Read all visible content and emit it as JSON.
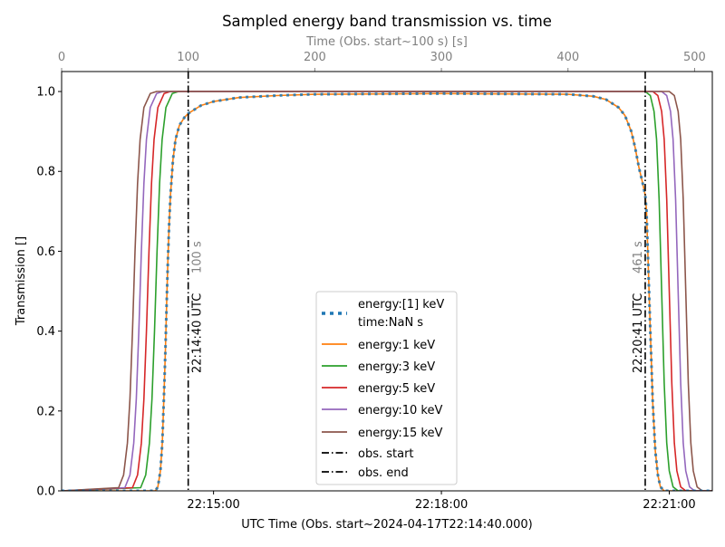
{
  "chart_data": {
    "type": "line",
    "title": "Sampled energy band transmission vs. time",
    "xlabel": "UTC Time (Obs. start~2024-04-17T22:14:40.000)",
    "ylabel": "Transmission []",
    "top_xlabel": "Time (Obs. start~100 s) [s]",
    "xlim": [
      0,
      514
    ],
    "ylim": [
      0,
      1.05
    ],
    "grid": false,
    "legend_position": "lower center",
    "top_xticks": [
      0,
      100,
      200,
      300,
      400,
      500
    ],
    "top_xtick_labels": [
      "0",
      "100",
      "200",
      "300",
      "400",
      "500"
    ],
    "bottom_xticks": [
      120,
      300,
      480
    ],
    "bottom_xtick_labels": [
      "22:15:00",
      "22:18:00",
      "22:21:00"
    ],
    "yticks": [
      0,
      0.2,
      0.4,
      0.6,
      0.8,
      1.0
    ],
    "ytick_labels": [
      "0.0",
      "0.2",
      "0.4",
      "0.6",
      "0.8",
      "1.0"
    ],
    "series": [
      {
        "name": "energy:[1] keV",
        "name2": "time:NaN s",
        "color": "#1f77b4",
        "style": "dotted",
        "x": [
          0,
          74,
          76,
          78,
          79.5,
          81,
          82,
          83,
          84,
          85,
          86,
          88,
          90,
          93,
          97,
          100,
          110,
          120,
          140,
          170,
          200,
          300,
          400,
          420,
          430,
          440,
          445,
          450,
          453,
          456,
          459,
          461,
          462,
          463,
          464,
          465,
          467,
          469,
          471,
          473,
          476,
          514
        ],
        "y": [
          0,
          0,
          0.01,
          0.05,
          0.12,
          0.25,
          0.35,
          0.47,
          0.58,
          0.67,
          0.74,
          0.83,
          0.88,
          0.915,
          0.935,
          0.945,
          0.965,
          0.975,
          0.985,
          0.99,
          0.993,
          0.995,
          0.993,
          0.988,
          0.98,
          0.96,
          0.94,
          0.9,
          0.86,
          0.81,
          0.77,
          0.74,
          0.7,
          0.6,
          0.5,
          0.4,
          0.22,
          0.1,
          0.04,
          0.01,
          0,
          0
        ]
      },
      {
        "name": "energy:1 keV",
        "color": "#ff7f0e",
        "style": "solid",
        "x": [
          0,
          74,
          76,
          78,
          79.5,
          81,
          82,
          83,
          84,
          85,
          86,
          88,
          90,
          93,
          97,
          100,
          110,
          120,
          140,
          170,
          200,
          300,
          400,
          420,
          430,
          440,
          445,
          450,
          453,
          456,
          459,
          461,
          462,
          463,
          464,
          465,
          467,
          469,
          471,
          473,
          476,
          514
        ],
        "y": [
          0,
          0,
          0.01,
          0.05,
          0.12,
          0.25,
          0.35,
          0.47,
          0.58,
          0.67,
          0.74,
          0.83,
          0.88,
          0.915,
          0.935,
          0.945,
          0.965,
          0.975,
          0.985,
          0.99,
          0.993,
          0.995,
          0.993,
          0.988,
          0.98,
          0.96,
          0.94,
          0.9,
          0.86,
          0.81,
          0.77,
          0.74,
          0.7,
          0.6,
          0.5,
          0.4,
          0.22,
          0.1,
          0.04,
          0.01,
          0,
          0
        ]
      },
      {
        "name": "energy:3 keV",
        "color": "#2ca02c",
        "style": "solid",
        "x": [
          0,
          62.4,
          66.4,
          69.4,
          71.4,
          73.4,
          74.4,
          75.4,
          77.4,
          79.4,
          82.4,
          87.4,
          92.4,
          461,
          465,
          468,
          470,
          472,
          474,
          476,
          478,
          480,
          483,
          487,
          514
        ],
        "y": [
          0,
          0.008,
          0.04,
          0.12,
          0.23,
          0.4,
          0.5,
          0.6,
          0.77,
          0.88,
          0.96,
          0.995,
          1.0,
          1.0,
          0.99,
          0.95,
          0.88,
          0.73,
          0.5,
          0.27,
          0.12,
          0.05,
          0.01,
          0,
          0
        ]
      },
      {
        "name": "energy:5 keV",
        "color": "#d62728",
        "style": "solid",
        "x": [
          0,
          56,
          60,
          63,
          65,
          67,
          68,
          69,
          71,
          73,
          76,
          81,
          86,
          467,
          471,
          474,
          476,
          478,
          480,
          482,
          484,
          486,
          489,
          493,
          514
        ],
        "y": [
          0,
          0.008,
          0.04,
          0.12,
          0.23,
          0.4,
          0.5,
          0.6,
          0.77,
          0.88,
          0.96,
          0.995,
          1.0,
          1.0,
          0.99,
          0.95,
          0.88,
          0.73,
          0.5,
          0.27,
          0.12,
          0.05,
          0.01,
          0,
          0
        ]
      },
      {
        "name": "energy:10 keV",
        "color": "#9467bd",
        "style": "solid",
        "x": [
          0,
          50,
          54,
          57,
          59,
          61,
          62,
          63,
          65,
          67,
          70,
          75,
          80,
          474,
          478,
          481,
          483,
          485,
          487,
          489,
          491,
          493,
          496,
          500,
          514
        ],
        "y": [
          0,
          0.008,
          0.04,
          0.12,
          0.23,
          0.4,
          0.5,
          0.6,
          0.77,
          0.88,
          0.96,
          0.995,
          1.0,
          1.0,
          0.99,
          0.95,
          0.88,
          0.73,
          0.5,
          0.27,
          0.12,
          0.05,
          0.01,
          0,
          0
        ]
      },
      {
        "name": "energy:15 keV",
        "color": "#8c564b",
        "style": "solid",
        "x": [
          0,
          45,
          49,
          52,
          54,
          56,
          57,
          58,
          60,
          62,
          65,
          70,
          75,
          480,
          484,
          487,
          489,
          491,
          493,
          495,
          497,
          499,
          502,
          506,
          514
        ],
        "y": [
          0,
          0.008,
          0.04,
          0.12,
          0.23,
          0.4,
          0.5,
          0.6,
          0.77,
          0.88,
          0.96,
          0.995,
          1.0,
          1.0,
          0.99,
          0.95,
          0.88,
          0.73,
          0.5,
          0.27,
          0.12,
          0.05,
          0.01,
          0,
          0
        ]
      }
    ],
    "vlines": [
      {
        "name": "obs. start",
        "x": 100,
        "utc_label": "22:14:40 UTC",
        "sec_label": "100 s",
        "color": "#000000"
      },
      {
        "name": "obs. end",
        "x": 461,
        "utc_label": "22:20:41 UTC",
        "sec_label": "461 s",
        "color": "#000000"
      }
    ]
  }
}
